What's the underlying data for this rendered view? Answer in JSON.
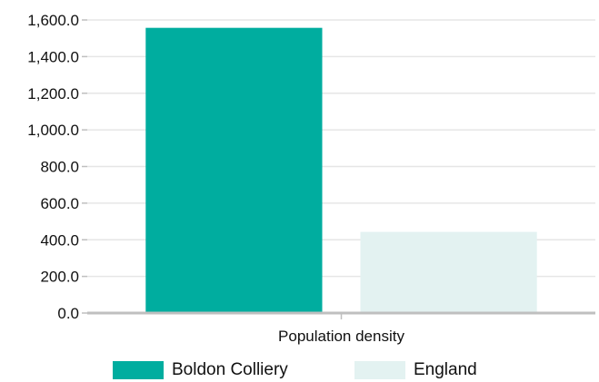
{
  "chart_data": {
    "type": "bar",
    "categories": [
      "Population density"
    ],
    "series": [
      {
        "name": "Boldon Colliery",
        "values": [
          1557.0
        ],
        "color": "#00ad9f"
      },
      {
        "name": "England",
        "values": [
          443.0
        ],
        "color": "#e3f2f1"
      }
    ],
    "ylim": [
      0,
      1600
    ],
    "yticks": [
      "0.0",
      "200.0",
      "400.0",
      "600.0",
      "800.0",
      "1,000.0",
      "1,200.0",
      "1,400.0",
      "1,600.0"
    ],
    "ytick_values": [
      0,
      200,
      400,
      600,
      800,
      1000,
      1200,
      1400,
      1600
    ],
    "grid": true,
    "legend_position": "bottom",
    "gridline_color": "#e6e6e6",
    "axis_color": "#bfbfbf"
  }
}
